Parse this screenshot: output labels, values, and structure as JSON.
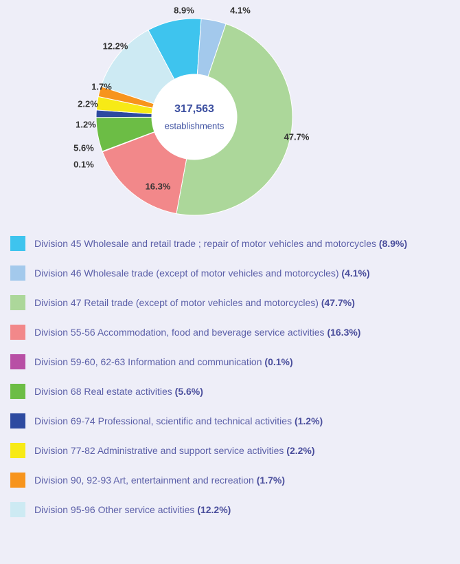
{
  "chart_data": {
    "type": "donut",
    "center_value": "317,563",
    "center_label": "establishments",
    "categories": [
      "Division 45 Wholesale and retail trade ; repair of motor vehicles and motorcycles",
      "Division 46 Wholesale trade (except of motor vehicles and motorcycles)",
      "Division 47 Retail trade (except of motor vehicles and motorcycles)",
      "Division 55-56 Accommodation, food and beverage service activities",
      "Division 59-60, 62-63 Information and communication",
      "Division 68 Real estate activities",
      "Division 69-74 Professional, scientific and technical activities",
      "Division 77-82 Administrative and support service activities",
      "Division 90, 92-93 Art, entertainment and recreation",
      "Division 95-96 Other service activities"
    ],
    "values": [
      8.9,
      4.1,
      47.7,
      16.3,
      0.1,
      5.6,
      1.2,
      2.2,
      1.7,
      12.2
    ],
    "value_labels": [
      "8.9%",
      "4.1%",
      "47.7%",
      "16.3%",
      "0.1%",
      "5.6%",
      "1.2%",
      "2.2%",
      "1.7%",
      "12.2%"
    ],
    "legend_value_labels": [
      "(8.9%)",
      "(4.1%)",
      "(47.7%)",
      "(16.3%)",
      "(0.1%)",
      "(5.6%)",
      "(1.2%)",
      "(2.2%)",
      "(1.7%)",
      "(12.2%)"
    ],
    "colors": [
      "#3ec4ee",
      "#a3c9ec",
      "#acd79a",
      "#f2888a",
      "#b84fa5",
      "#6cbd45",
      "#2d4aa0",
      "#f7ea16",
      "#f7941d",
      "#cdeaf3"
    ]
  }
}
